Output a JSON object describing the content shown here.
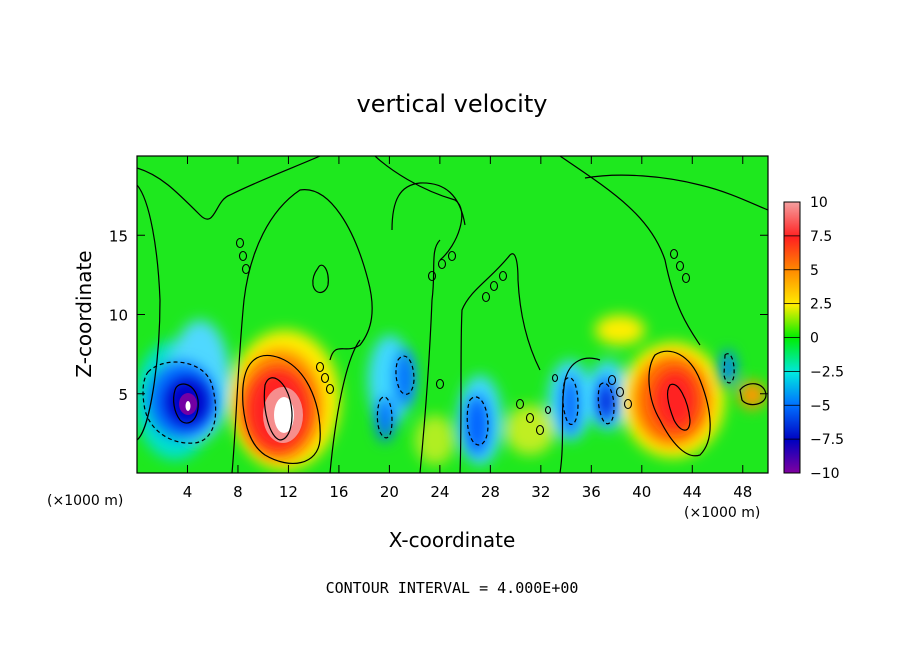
{
  "chart_data": {
    "type": "heatmap",
    "title": "vertical velocity",
    "xlabel": "X-coordinate",
    "ylabel": "Z-coordinate",
    "x_multiplier": "(×1000 m)",
    "x_multiplier_right": "(×1000 m)",
    "xlim": [
      0,
      50
    ],
    "ylim": [
      0,
      20
    ],
    "x_ticks": [
      4,
      8,
      12,
      16,
      20,
      24,
      28,
      32,
      36,
      40,
      44,
      48
    ],
    "x_tick_labels": [
      "4",
      "8",
      "12",
      "16",
      "20",
      "24",
      "28",
      "32",
      "36",
      "40",
      "44",
      "48"
    ],
    "y_ticks": [
      5,
      10,
      15
    ],
    "y_tick_labels": [
      "5",
      "10",
      "15"
    ],
    "colorbar": {
      "range": [
        -10,
        10
      ],
      "tick_values": [
        10,
        7.5,
        5,
        2.5,
        0,
        -2.5,
        -5,
        -7.5,
        -10
      ],
      "tick_labels": [
        "10",
        "7.5",
        "5",
        "2.5",
        "0",
        "−2.5",
        "−5",
        "−7.5",
        "−10"
      ],
      "colors": [
        "#f5a0a0",
        "#ff2020",
        "#ff8800",
        "#ffee00",
        "#00ee00",
        "#00e8e0",
        "#0070ff",
        "#0000c0",
        "#8000a0"
      ]
    },
    "features": [
      {
        "x": 4,
        "z": 4.5,
        "value": -10
      },
      {
        "x": 11.5,
        "z": 3.5,
        "value": 10
      },
      {
        "x": 20.5,
        "z": 5.5,
        "value": -5
      },
      {
        "x": 19,
        "z": 3.5,
        "value": -5
      },
      {
        "x": 27,
        "z": 3,
        "value": -6
      },
      {
        "x": 34.5,
        "z": 4,
        "value": -6
      },
      {
        "x": 37,
        "z": 4.5,
        "value": -7
      },
      {
        "x": 42.5,
        "z": 4,
        "value": 8
      },
      {
        "x": 49,
        "z": 5,
        "value": 4
      },
      {
        "x": 39,
        "z": 9,
        "value": 3
      },
      {
        "x": 47,
        "z": 6.5,
        "value": -4
      }
    ],
    "footer": "CONTOUR INTERVAL = 4.000E+00"
  }
}
